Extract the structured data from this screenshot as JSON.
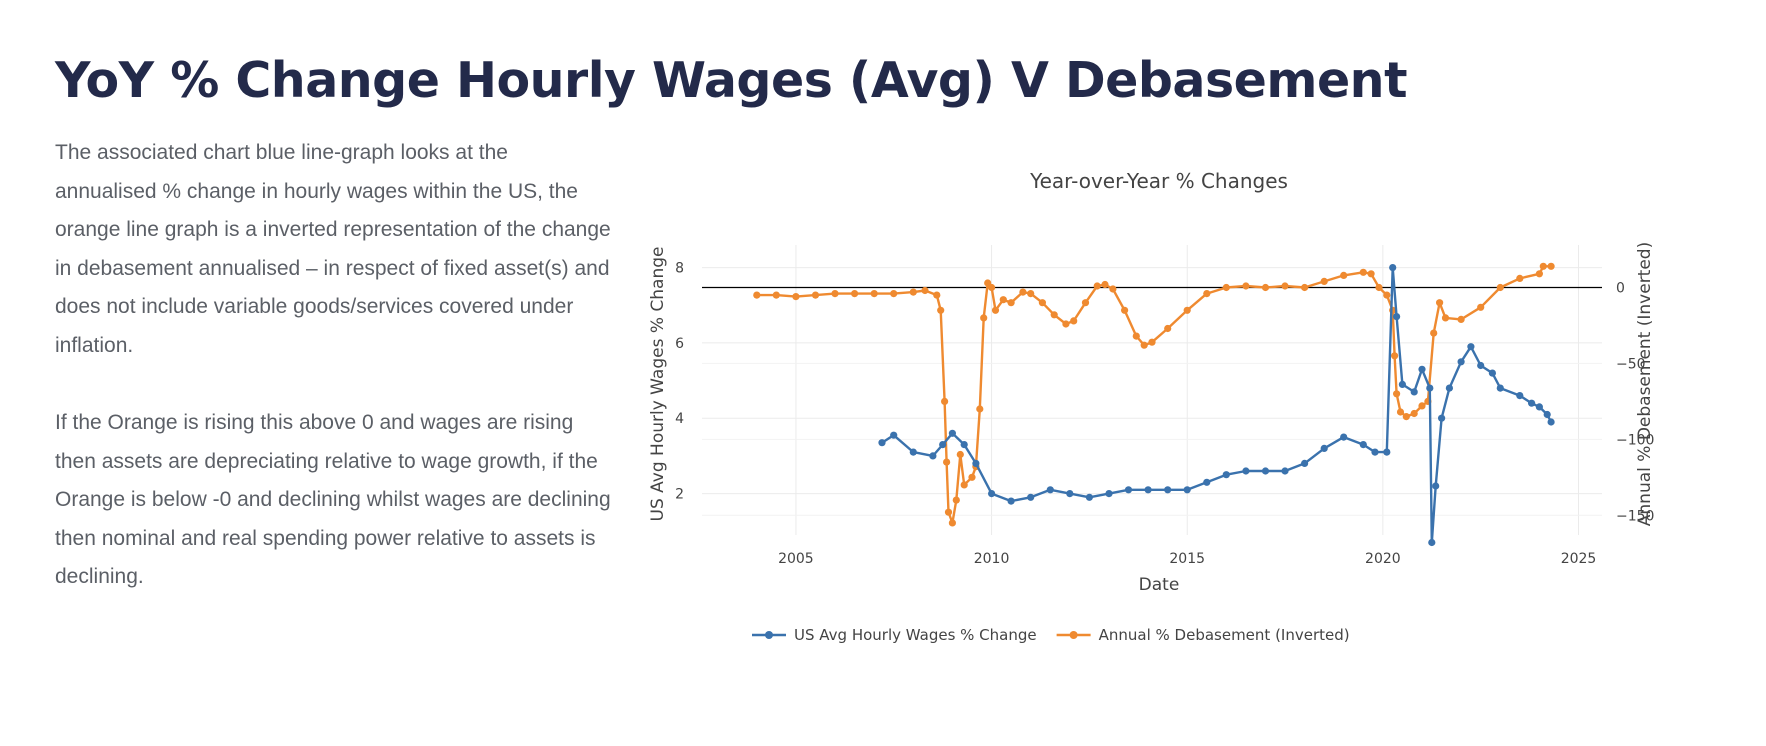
{
  "page": {
    "title": "YoY % Change Hourly Wages (Avg) V Debasement",
    "paragraphs": [
      "The associated chart blue line-graph looks at the annualised % change in hourly wages within the US, the orange line graph is a inverted representation of the change in debasement annualised – in respect of fixed asset(s) and does not include variable goods/services covered under inflation.",
      "If the Orange is rising this above 0 and wages are rising then assets are depreciating relative to wage growth, if the Orange is below -0 and declining whilst wages are declining then nominal and real spending power relative to assets is declining."
    ]
  },
  "chart_data": {
    "type": "line",
    "title": "Year-over-Year % Changes",
    "xlabel": "Date",
    "ylabel": "US Avg Hourly Wages % Change",
    "y2label": "Annual % Debasement (Inverted)",
    "xlim": [
      2002.6,
      2025.6
    ],
    "ylim": [
      0.9,
      8.6
    ],
    "y2lim": [
      -163,
      28
    ],
    "x_ticks": [
      2005,
      2010,
      2015,
      2020,
      2025
    ],
    "y_ticks": [
      2,
      4,
      6,
      8
    ],
    "y2_ticks": [
      0,
      -50,
      -100,
      -150
    ],
    "reference_line": {
      "axis": "y2",
      "value": 0,
      "color": "#000000"
    },
    "grid": true,
    "legend_position": "bottom-center",
    "series": [
      {
        "name": "US Avg Hourly Wages % Change",
        "axis": "y",
        "color": "#3a72ad",
        "points": [
          [
            2007.2,
            3.35
          ],
          [
            2007.5,
            3.55
          ],
          [
            2008.0,
            3.1
          ],
          [
            2008.5,
            3.0
          ],
          [
            2008.75,
            3.3
          ],
          [
            2009.0,
            3.6
          ],
          [
            2009.3,
            3.3
          ],
          [
            2009.6,
            2.8
          ],
          [
            2010.0,
            2.0
          ],
          [
            2010.5,
            1.8
          ],
          [
            2011.0,
            1.9
          ],
          [
            2011.5,
            2.1
          ],
          [
            2012.0,
            2.0
          ],
          [
            2012.5,
            1.9
          ],
          [
            2013.0,
            2.0
          ],
          [
            2013.5,
            2.1
          ],
          [
            2014.0,
            2.1
          ],
          [
            2014.5,
            2.1
          ],
          [
            2015.0,
            2.1
          ],
          [
            2015.5,
            2.3
          ],
          [
            2016.0,
            2.5
          ],
          [
            2016.5,
            2.6
          ],
          [
            2017.0,
            2.6
          ],
          [
            2017.5,
            2.6
          ],
          [
            2018.0,
            2.8
          ],
          [
            2018.5,
            3.2
          ],
          [
            2019.0,
            3.5
          ],
          [
            2019.5,
            3.3
          ],
          [
            2019.8,
            3.1
          ],
          [
            2020.1,
            3.1
          ],
          [
            2020.25,
            8.0
          ],
          [
            2020.35,
            6.7
          ],
          [
            2020.5,
            4.9
          ],
          [
            2020.8,
            4.7
          ],
          [
            2021.0,
            5.3
          ],
          [
            2021.2,
            4.8
          ],
          [
            2021.25,
            0.7
          ],
          [
            2021.35,
            2.2
          ],
          [
            2021.5,
            4.0
          ],
          [
            2021.7,
            4.8
          ],
          [
            2022.0,
            5.5
          ],
          [
            2022.25,
            5.9
          ],
          [
            2022.5,
            5.4
          ],
          [
            2022.8,
            5.2
          ],
          [
            2023.0,
            4.8
          ],
          [
            2023.5,
            4.6
          ],
          [
            2023.8,
            4.4
          ],
          [
            2024.0,
            4.3
          ],
          [
            2024.2,
            4.1
          ],
          [
            2024.3,
            3.9
          ]
        ]
      },
      {
        "name": "Annual % Debasement (Inverted)",
        "axis": "y2",
        "color": "#ef8a30",
        "points": [
          [
            2004.0,
            -5
          ],
          [
            2004.5,
            -5
          ],
          [
            2005.0,
            -6
          ],
          [
            2005.5,
            -5
          ],
          [
            2006.0,
            -4
          ],
          [
            2006.5,
            -4
          ],
          [
            2007.0,
            -4
          ],
          [
            2007.5,
            -4
          ],
          [
            2008.0,
            -3
          ],
          [
            2008.3,
            -2
          ],
          [
            2008.6,
            -5
          ],
          [
            2008.7,
            -15
          ],
          [
            2008.8,
            -75
          ],
          [
            2008.85,
            -115
          ],
          [
            2008.9,
            -148
          ],
          [
            2009.0,
            -155
          ],
          [
            2009.1,
            -140
          ],
          [
            2009.2,
            -110
          ],
          [
            2009.3,
            -130
          ],
          [
            2009.5,
            -125
          ],
          [
            2009.6,
            -118
          ],
          [
            2009.7,
            -80
          ],
          [
            2009.8,
            -20
          ],
          [
            2009.9,
            3
          ],
          [
            2010.0,
            0
          ],
          [
            2010.1,
            -15
          ],
          [
            2010.3,
            -8
          ],
          [
            2010.5,
            -10
          ],
          [
            2010.8,
            -3
          ],
          [
            2011.0,
            -4
          ],
          [
            2011.3,
            -10
          ],
          [
            2011.6,
            -18
          ],
          [
            2011.9,
            -24
          ],
          [
            2012.1,
            -22
          ],
          [
            2012.4,
            -10
          ],
          [
            2012.7,
            1
          ],
          [
            2012.9,
            2
          ],
          [
            2013.1,
            -1
          ],
          [
            2013.4,
            -15
          ],
          [
            2013.7,
            -32
          ],
          [
            2013.9,
            -38
          ],
          [
            2014.1,
            -36
          ],
          [
            2014.5,
            -27
          ],
          [
            2015.0,
            -15
          ],
          [
            2015.5,
            -4
          ],
          [
            2016.0,
            0
          ],
          [
            2016.5,
            1
          ],
          [
            2017.0,
            0
          ],
          [
            2017.5,
            1
          ],
          [
            2018.0,
            0
          ],
          [
            2018.5,
            4
          ],
          [
            2019.0,
            8
          ],
          [
            2019.5,
            10
          ],
          [
            2019.7,
            9
          ],
          [
            2019.9,
            0
          ],
          [
            2020.1,
            -5
          ],
          [
            2020.25,
            -15
          ],
          [
            2020.3,
            -45
          ],
          [
            2020.35,
            -70
          ],
          [
            2020.45,
            -82
          ],
          [
            2020.6,
            -85
          ],
          [
            2020.8,
            -83
          ],
          [
            2021.0,
            -78
          ],
          [
            2021.15,
            -75
          ],
          [
            2021.3,
            -30
          ],
          [
            2021.45,
            -10
          ],
          [
            2021.6,
            -20
          ],
          [
            2022.0,
            -21
          ],
          [
            2022.5,
            -13
          ],
          [
            2023.0,
            0
          ],
          [
            2023.5,
            6
          ],
          [
            2024.0,
            9
          ],
          [
            2024.1,
            14
          ],
          [
            2024.3,
            14
          ]
        ]
      }
    ]
  }
}
